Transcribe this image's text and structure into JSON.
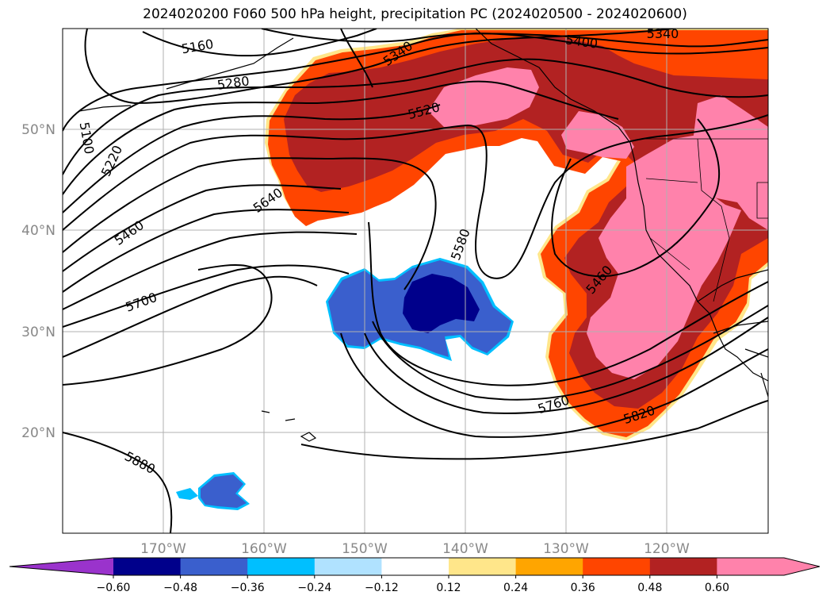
{
  "title": "2024020200 F060 500 hPa height, precipitation PC (2024020500 - 2024020600)",
  "map": {
    "lat_labels": [
      "50°N",
      "40°N",
      "30°N",
      "20°N"
    ],
    "lon_labels": [
      "170°W",
      "160°W",
      "150°W",
      "140°W",
      "130°W",
      "120°W"
    ],
    "contour_labels": [
      {
        "text": "5160"
      },
      {
        "text": "5280"
      },
      {
        "text": "5340"
      },
      {
        "text": "5400"
      },
      {
        "text": "5340"
      },
      {
        "text": "5100"
      },
      {
        "text": "5220"
      },
      {
        "text": "5520"
      },
      {
        "text": "5640"
      },
      {
        "text": "5460"
      },
      {
        "text": "5580"
      },
      {
        "text": "5700"
      },
      {
        "text": "5460"
      },
      {
        "text": "5760"
      },
      {
        "text": "5820"
      },
      {
        "text": "5880"
      }
    ]
  },
  "colorbar": {
    "ticks": [
      "−0.60",
      "−0.48",
      "−0.36",
      "−0.24",
      "−0.12",
      "0.12",
      "0.24",
      "0.36",
      "0.48",
      "0.60"
    ],
    "colors": [
      "#9a33cc",
      "#00008b",
      "#3a5fcd",
      "#00bfff",
      "#b0e2ff",
      "#ffffff",
      "#ffe68a",
      "#ffa500",
      "#ff4500",
      "#b22222",
      "#ff82ab",
      "#ff82ab"
    ]
  }
}
